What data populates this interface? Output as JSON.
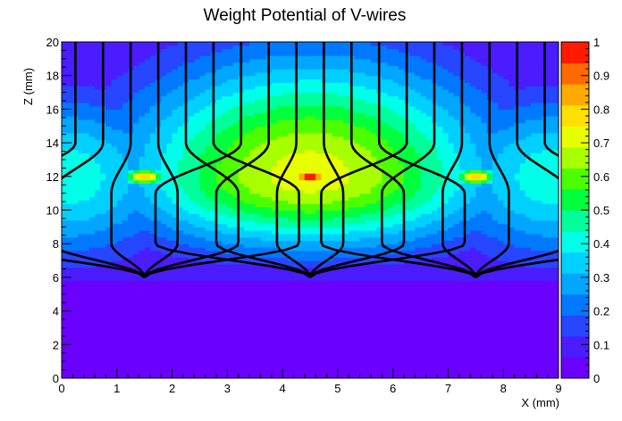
{
  "chart_data": {
    "type": "heatmap",
    "title": "Weight Potential of V-wires",
    "xlabel": "X (mm)",
    "ylabel": "Z (mm)",
    "xlim": [
      0,
      9
    ],
    "ylim": [
      0,
      20
    ],
    "x_ticks": [
      "0",
      "1",
      "2",
      "3",
      "4",
      "5",
      "6",
      "7",
      "8",
      "9"
    ],
    "y_ticks": [
      "0",
      "2",
      "4",
      "6",
      "8",
      "10",
      "12",
      "14",
      "16",
      "18",
      "20"
    ],
    "colorbar": {
      "min": 0,
      "max": 1,
      "ticks": [
        "0",
        "0.1",
        "0.2",
        "0.3",
        "0.4",
        "0.5",
        "0.6",
        "0.7",
        "0.8",
        "0.9",
        "1"
      ],
      "palette": [
        "#6a00ff",
        "#4a1cff",
        "#2646ff",
        "#0079ff",
        "#00a6ff",
        "#00d0ff",
        "#00ffe8",
        "#00ff9a",
        "#00ff3c",
        "#4cff00",
        "#a8ff00",
        "#e8ff00",
        "#ffe000",
        "#ffaa00",
        "#ff6a00",
        "#ff1a00"
      ]
    },
    "wires_x": [
      1.5,
      4.5,
      7.5
    ],
    "wire_z": 12,
    "hotspot_weights": [
      0.85,
      1.0,
      0.85
    ],
    "drift_line_focus_z": 6,
    "drift_line_start_x": [
      0.25,
      0.75,
      1.25,
      1.75,
      2.25,
      2.75,
      3.25,
      3.75,
      4.25,
      4.75,
      5.25,
      5.75,
      6.25,
      6.75,
      7.25,
      7.75,
      8.25,
      8.75
    ]
  }
}
